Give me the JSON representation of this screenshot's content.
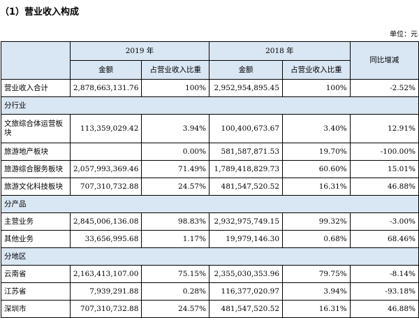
{
  "title": "（1）营业收入构成",
  "unit": "单位：元",
  "headers": {
    "y2019": "2019 年",
    "y2018": "2018 年",
    "amount_2019": "金额",
    "ratio_2019": "占营业收入比重",
    "amount_2018": "金额",
    "ratio_2018": "占营业收入比重",
    "yoy": "同比增减"
  },
  "total": [
    "营业收入合计",
    "2,878,663,131.76",
    "100%",
    "2,952,954,895.45",
    "100%",
    "-2.52%"
  ],
  "sections": {
    "industry": "分行业",
    "product": "分产品",
    "region": "分地区"
  },
  "industry_rows": [
    [
      "文旅综合体运营板块",
      "113,359,029.42",
      "3.94%",
      "100,400,673.67",
      "3.40%",
      "12.91%"
    ],
    [
      "旅游地产板块",
      "",
      "0.00%",
      "581,587,871.53",
      "19.70%",
      "-100.00%"
    ],
    [
      "旅游综合服务板块",
      "2,057,993,369.46",
      "71.49%",
      "1,789,418,829.73",
      "60.60%",
      "15.01%"
    ],
    [
      "旅游文化科技板块",
      "707,310,732.88",
      "24.57%",
      "481,547,520.52",
      "16.31%",
      "46.88%"
    ]
  ],
  "product_rows": [
    [
      "主营业务",
      "2,845,006,136.08",
      "98.83%",
      "2,932,975,749.15",
      "99.32%",
      "-3.00%"
    ],
    [
      "其他业务",
      "33,656,995.68",
      "1.17%",
      "19,979,146.30",
      "0.68%",
      "68.46%"
    ]
  ],
  "region_rows": [
    [
      "云南省",
      "2,163,413,107.00",
      "75.15%",
      "2,355,030,353.96",
      "79.75%",
      "-8.14%"
    ],
    [
      "江苏省",
      "7,939,291.88",
      "0.28%",
      "116,377,020.97",
      "3.94%",
      "-93.18%"
    ],
    [
      "深圳市",
      "707,310,732.88",
      "24.57%",
      "481,547,520.52",
      "16.31%",
      "46.88%"
    ]
  ]
}
